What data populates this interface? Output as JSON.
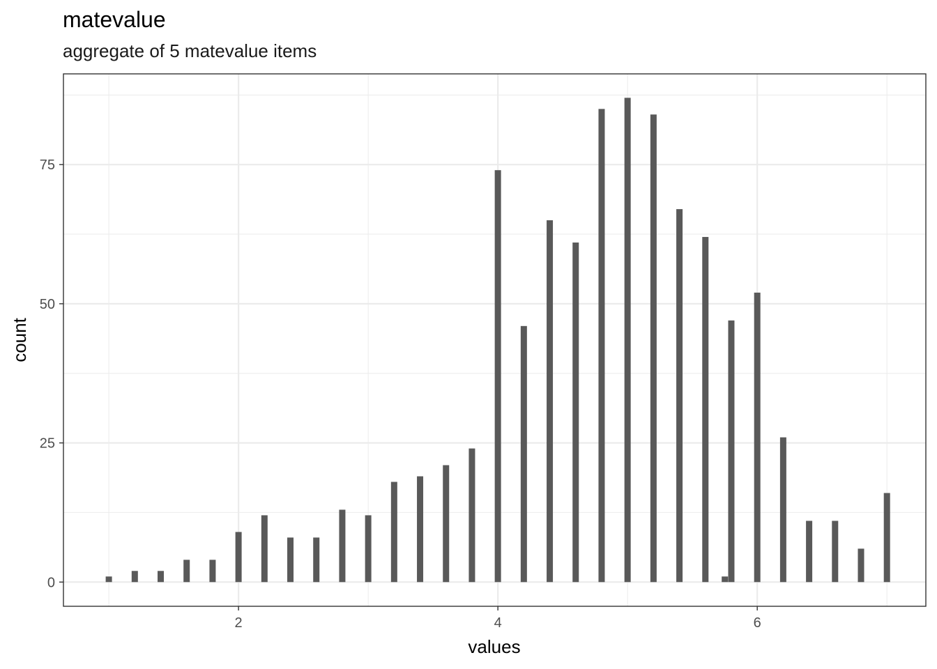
{
  "chart_data": {
    "type": "bar",
    "title": "matevalue",
    "subtitle": "aggregate of 5 matevalue items",
    "xlabel": "values",
    "ylabel": "count",
    "xlim": [
      0.65,
      7.3
    ],
    "ylim": [
      -4.35,
      91.3
    ],
    "x_ticks": [
      2,
      4,
      6
    ],
    "y_ticks": [
      0,
      25,
      50,
      75
    ],
    "grid": true,
    "bar_color": "#595959",
    "grid_color": "#ebebeb",
    "points": [
      {
        "x": 1.0,
        "y": 1
      },
      {
        "x": 1.2,
        "y": 2
      },
      {
        "x": 1.4,
        "y": 2
      },
      {
        "x": 1.6,
        "y": 4
      },
      {
        "x": 1.8,
        "y": 4
      },
      {
        "x": 2.0,
        "y": 9
      },
      {
        "x": 2.2,
        "y": 12
      },
      {
        "x": 2.4,
        "y": 8
      },
      {
        "x": 2.6,
        "y": 8
      },
      {
        "x": 2.8,
        "y": 13
      },
      {
        "x": 3.0,
        "y": 12
      },
      {
        "x": 3.2,
        "y": 18
      },
      {
        "x": 3.4,
        "y": 19
      },
      {
        "x": 3.6,
        "y": 21
      },
      {
        "x": 3.8,
        "y": 24
      },
      {
        "x": 4.0,
        "y": 74
      },
      {
        "x": 4.2,
        "y": 46
      },
      {
        "x": 4.4,
        "y": 65
      },
      {
        "x": 4.6,
        "y": 61
      },
      {
        "x": 4.8,
        "y": 85
      },
      {
        "x": 5.0,
        "y": 87
      },
      {
        "x": 5.2,
        "y": 84
      },
      {
        "x": 5.4,
        "y": 67
      },
      {
        "x": 5.6,
        "y": 62
      },
      {
        "x": 5.75,
        "y": 1
      },
      {
        "x": 5.8,
        "y": 47
      },
      {
        "x": 6.0,
        "y": 52
      },
      {
        "x": 6.2,
        "y": 26
      },
      {
        "x": 6.4,
        "y": 11
      },
      {
        "x": 6.6,
        "y": 11
      },
      {
        "x": 6.8,
        "y": 6
      },
      {
        "x": 7.0,
        "y": 16
      }
    ]
  }
}
